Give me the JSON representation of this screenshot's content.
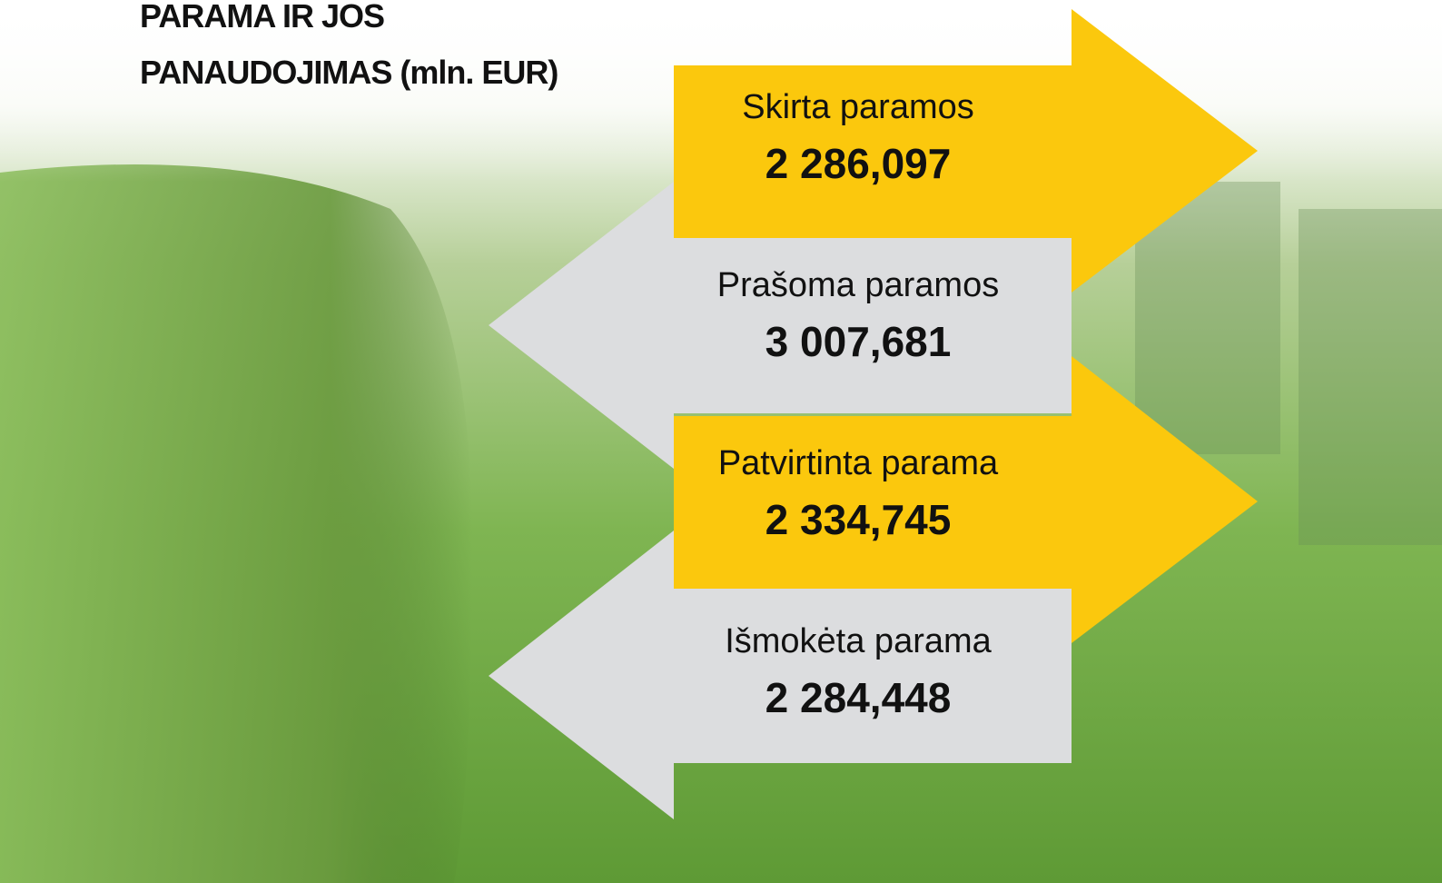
{
  "title": [
    "PARAMA IR JOS",
    "PANAUDOJIMAS (mln. EUR)"
  ],
  "items": [
    {
      "label": "Skirta paramos",
      "value": "2 286,097"
    },
    {
      "label": "Prašoma paramos",
      "value": "3 007,681"
    },
    {
      "label": "Patvirtinta parama",
      "value": "2 334,745"
    },
    {
      "label": "Išmokėta parama",
      "value": "2 284,448"
    }
  ]
}
